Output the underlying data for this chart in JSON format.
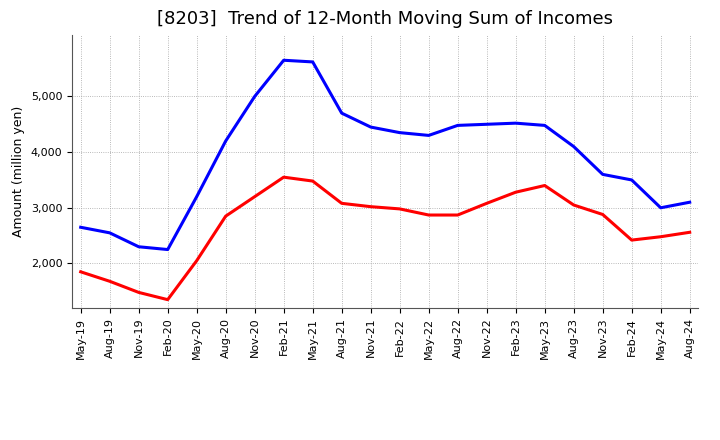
{
  "title": "[8203]  Trend of 12-Month Moving Sum of Incomes",
  "ylabel": "Amount (million yen)",
  "ordinary_income": {
    "color": "#0000FF",
    "data": [
      [
        "May-19",
        2650
      ],
      [
        "Aug-19",
        2550
      ],
      [
        "Nov-19",
        2300
      ],
      [
        "Feb-20",
        2250
      ],
      [
        "May-20",
        3200
      ],
      [
        "Aug-20",
        4200
      ],
      [
        "Nov-20",
        5000
      ],
      [
        "Feb-21",
        5650
      ],
      [
        "May-21",
        5620
      ],
      [
        "Aug-21",
        4700
      ],
      [
        "Nov-21",
        4450
      ],
      [
        "Feb-22",
        4350
      ],
      [
        "May-22",
        4300
      ],
      [
        "Aug-22",
        4480
      ],
      [
        "Nov-22",
        4500
      ],
      [
        "Feb-23",
        4520
      ],
      [
        "May-23",
        4480
      ],
      [
        "Aug-23",
        4100
      ],
      [
        "Nov-23",
        3600
      ],
      [
        "Feb-24",
        3500
      ],
      [
        "May-24",
        3000
      ],
      [
        "Aug-24",
        3100
      ]
    ]
  },
  "net_income": {
    "color": "#FF0000",
    "data": [
      [
        "May-19",
        1850
      ],
      [
        "Aug-19",
        1680
      ],
      [
        "Nov-19",
        1480
      ],
      [
        "Feb-20",
        1350
      ],
      [
        "May-20",
        2050
      ],
      [
        "Aug-20",
        2850
      ],
      [
        "Nov-20",
        3200
      ],
      [
        "Feb-21",
        3550
      ],
      [
        "May-21",
        3480
      ],
      [
        "Aug-21",
        3080
      ],
      [
        "Nov-21",
        3020
      ],
      [
        "Feb-22",
        2980
      ],
      [
        "May-22",
        2870
      ],
      [
        "Aug-22",
        2870
      ],
      [
        "Nov-22",
        3080
      ],
      [
        "Feb-23",
        3280
      ],
      [
        "May-23",
        3400
      ],
      [
        "Aug-23",
        3050
      ],
      [
        "Nov-23",
        2880
      ],
      [
        "Feb-24",
        2420
      ],
      [
        "May-24",
        2480
      ],
      [
        "Aug-24",
        2560
      ]
    ]
  },
  "ylim": [
    1200,
    6100
  ],
  "yticks": [
    2000,
    3000,
    4000,
    5000
  ],
  "background_color": "#FFFFFF",
  "grid_color": "#999999",
  "title_fontsize": 13,
  "axis_fontsize": 9,
  "tick_fontsize": 8,
  "legend_fontsize": 10,
  "linewidth": 2.2
}
